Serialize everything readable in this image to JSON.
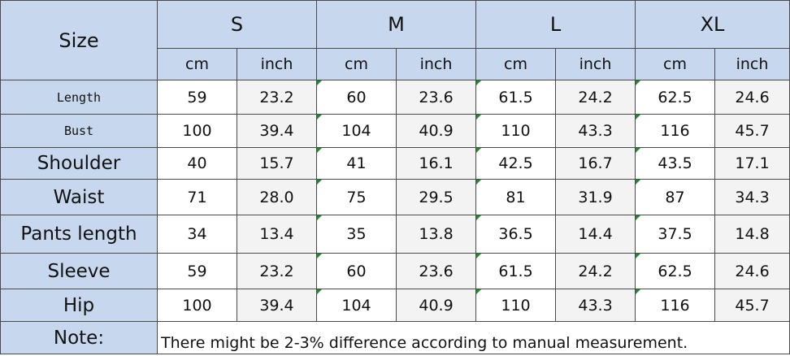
{
  "header": {
    "size_label": "Size",
    "sizes": [
      "S",
      "M",
      "L",
      "XL"
    ],
    "unit_cm": "cm",
    "unit_inch": "inch"
  },
  "rows": [
    {
      "label": "Length",
      "values": [
        "59",
        "23.2",
        "60",
        "23.6",
        "61.5",
        "24.2",
        "62.5",
        "24.6"
      ]
    },
    {
      "label": "Bust",
      "values": [
        "100",
        "39.4",
        "104",
        "40.9",
        "110",
        "43.3",
        "116",
        "45.7"
      ]
    },
    {
      "label": "Shoulder",
      "values": [
        "40",
        "15.7",
        "41",
        "16.1",
        "42.5",
        "16.7",
        "43.5",
        "17.1"
      ]
    },
    {
      "label": "Waist",
      "values": [
        "71",
        "28.0",
        "75",
        "29.5",
        "81",
        "31.9",
        "87",
        "34.3"
      ]
    },
    {
      "label": "Pants length",
      "values": [
        "34",
        "13.4",
        "35",
        "13.8",
        "36.5",
        "14.4",
        "37.5",
        "14.8"
      ]
    },
    {
      "label": "Sleeve",
      "values": [
        "59",
        "23.2",
        "60",
        "23.6",
        "61.5",
        "24.2",
        "62.5",
        "24.6"
      ]
    },
    {
      "label": "Hip",
      "values": [
        "100",
        "39.4",
        "104",
        "40.9",
        "110",
        "43.3",
        "116",
        "45.7"
      ]
    }
  ],
  "note": {
    "label": "Note:",
    "text": "There might be 2-3% difference according to manual measurement."
  },
  "colors": {
    "header_background": "#c7d8ee",
    "inch_column_background": "#f3f3f3",
    "cell_marker": "#1f8a2a"
  }
}
